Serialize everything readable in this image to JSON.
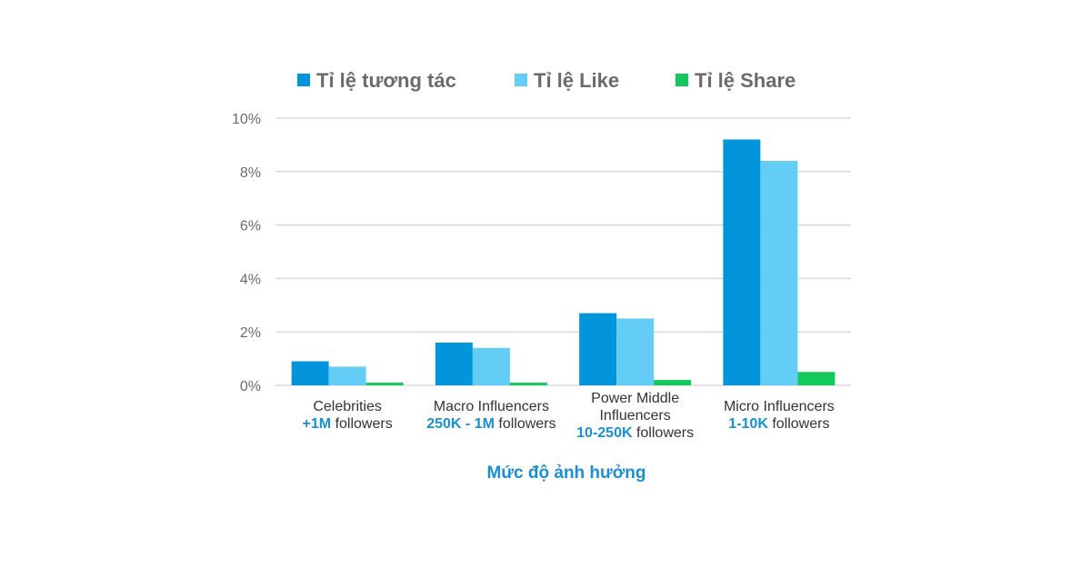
{
  "chart_data": {
    "type": "bar",
    "xlabel": "Mức độ ảnh hưởng",
    "ylabel": "",
    "ylim": [
      0,
      10
    ],
    "yticks": [
      {
        "value": 0,
        "label": "0%"
      },
      {
        "value": 2,
        "label": "2%"
      },
      {
        "value": 4,
        "label": "4%"
      },
      {
        "value": 6,
        "label": "6%"
      },
      {
        "value": 8,
        "label": "8%"
      },
      {
        "value": 10,
        "label": "10%"
      }
    ],
    "grid": true,
    "legend_position": "top",
    "categories": [
      {
        "lines": [
          [
            {
              "t": "Celebrities",
              "hl": false
            }
          ],
          [
            {
              "t": "+1M",
              "hl": true
            },
            {
              "t": " followers",
              "hl": false
            }
          ]
        ]
      },
      {
        "lines": [
          [
            {
              "t": "Macro Influencers",
              "hl": false
            }
          ],
          [
            {
              "t": "250K - 1M",
              "hl": true
            },
            {
              "t": " followers",
              "hl": false
            }
          ]
        ]
      },
      {
        "lines": [
          [
            {
              "t": "Power Middle",
              "hl": false
            }
          ],
          [
            {
              "t": "Influencers",
              "hl": false
            }
          ],
          [
            {
              "t": "10-250K",
              "hl": true
            },
            {
              "t": " followers",
              "hl": false
            }
          ]
        ]
      },
      {
        "lines": [
          [
            {
              "t": "Micro Influencers",
              "hl": false
            }
          ],
          [
            {
              "t": "1-10K",
              "hl": true
            },
            {
              "t": " followers",
              "hl": false
            }
          ]
        ]
      }
    ],
    "series": [
      {
        "name": "Tỉ lệ tương tác",
        "color": "#0395db",
        "values": [
          0.9,
          1.6,
          2.7,
          9.2
        ]
      },
      {
        "name": "Tỉ lệ Like",
        "color": "#63cdf5",
        "values": [
          0.7,
          1.4,
          2.5,
          8.4
        ]
      },
      {
        "name": "Tỉ lệ Share",
        "color": "#14c95c",
        "values": [
          0.1,
          0.1,
          0.2,
          0.5
        ]
      }
    ]
  }
}
